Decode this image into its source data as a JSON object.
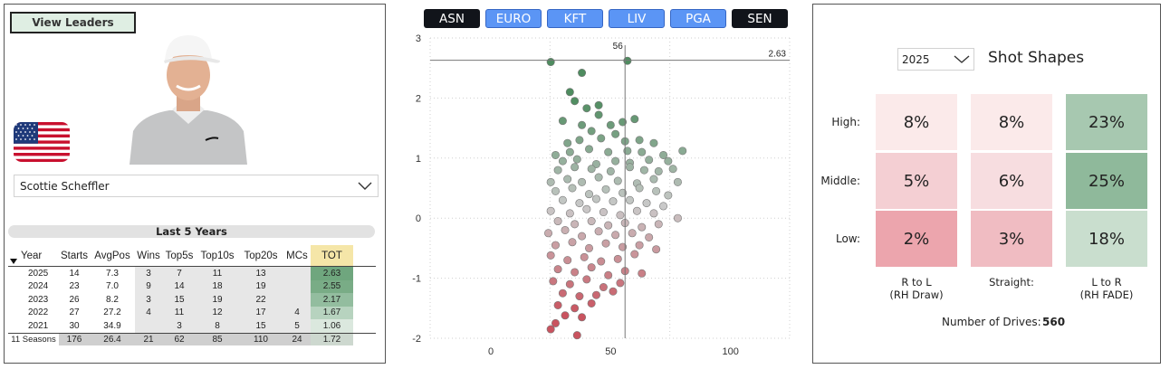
{
  "left": {
    "view_leaders_label": "View Leaders",
    "player": "Scottie Scheffler",
    "last5_label": "Last 5 Years",
    "table": {
      "headers": [
        "Year",
        "Starts",
        "AvgPos",
        "Wins",
        "Top5s",
        "Top10s",
        "Top20s",
        "MCs",
        "TOT"
      ],
      "rows": [
        {
          "year": "2025",
          "starts": "14",
          "avgpos": "7.3",
          "wins": "3",
          "top5s": "7",
          "top10s": "11",
          "top20s": "13",
          "mcs": "",
          "tot": "2.63",
          "tot_color": "#6fa67e"
        },
        {
          "year": "2024",
          "starts": "23",
          "avgpos": "7.0",
          "wins": "9",
          "top5s": "14",
          "top10s": "18",
          "top20s": "19",
          "mcs": "",
          "tot": "2.55",
          "tot_color": "#79ac86"
        },
        {
          "year": "2023",
          "starts": "26",
          "avgpos": "8.2",
          "wins": "3",
          "top5s": "15",
          "top10s": "19",
          "top20s": "22",
          "mcs": "",
          "tot": "2.17",
          "tot_color": "#93bd9f"
        },
        {
          "year": "2022",
          "starts": "27",
          "avgpos": "27.2",
          "wins": "4",
          "top5s": "11",
          "top10s": "12",
          "top20s": "17",
          "mcs": "4",
          "tot": "1.67",
          "tot_color": "#b7d3bf"
        },
        {
          "year": "2021",
          "starts": "30",
          "avgpos": "34.9",
          "wins": "",
          "top5s": "3",
          "top10s": "8",
          "top20s": "15",
          "mcs": "5",
          "tot": "1.06",
          "tot_color": "#dbe8de"
        }
      ],
      "total": {
        "label": "11 Seasons",
        "starts": "176",
        "avgpos": "26.4",
        "wins": "21",
        "top5s": "62",
        "top10s": "85",
        "top20s": "110",
        "mcs": "24",
        "tot": "1.72"
      }
    }
  },
  "tours": [
    {
      "label": "ASN",
      "style": "dark"
    },
    {
      "label": "EURO",
      "style": "blue"
    },
    {
      "label": "KFT",
      "style": "blue"
    },
    {
      "label": "LIV",
      "style": "blue"
    },
    {
      "label": "PGA",
      "style": "blue"
    },
    {
      "label": "SEN",
      "style": "dark"
    }
  ],
  "chart_data": {
    "type": "scatter",
    "xlim": [
      0,
      150
    ],
    "ylim": [
      -2,
      3
    ],
    "xticks": [
      "0",
      "50",
      "100",
      "150"
    ],
    "yticks": [
      "-2",
      "-1",
      "0",
      "1",
      "2",
      "3"
    ],
    "reference_x": 56,
    "reference_x_label": "56",
    "reference_y": 2.63,
    "reference_y_label": "2.63",
    "grid": true,
    "color_high": "#4e8c5f",
    "color_mid": "#c9c9c9",
    "color_low": "#c9535f",
    "points": [
      [
        25,
        2.6
      ],
      [
        57,
        2.62
      ],
      [
        38,
        2.42
      ],
      [
        33,
        2.1
      ],
      [
        35,
        1.95
      ],
      [
        45,
        1.88
      ],
      [
        40,
        1.83
      ],
      [
        30,
        1.62
      ],
      [
        45,
        1.72
      ],
      [
        38,
        1.55
      ],
      [
        50,
        1.55
      ],
      [
        55,
        1.6
      ],
      [
        60,
        1.65
      ],
      [
        42,
        1.45
      ],
      [
        52,
        1.4
      ],
      [
        32,
        1.25
      ],
      [
        37,
        1.3
      ],
      [
        46,
        1.33
      ],
      [
        56,
        1.28
      ],
      [
        62,
        1.3
      ],
      [
        68,
        1.25
      ],
      [
        27,
        1.05
      ],
      [
        33,
        1.1
      ],
      [
        41,
        1.15
      ],
      [
        49,
        1.1
      ],
      [
        57,
        1.12
      ],
      [
        63,
        1.1
      ],
      [
        72,
        1.05
      ],
      [
        80,
        1.12
      ],
      [
        30,
        0.95
      ],
      [
        36,
        0.98
      ],
      [
        44,
        0.9
      ],
      [
        52,
        0.95
      ],
      [
        58,
        0.92
      ],
      [
        66,
        0.97
      ],
      [
        74,
        0.95
      ],
      [
        28,
        0.8
      ],
      [
        35,
        0.85
      ],
      [
        42,
        0.82
      ],
      [
        50,
        0.78
      ],
      [
        58,
        0.85
      ],
      [
        64,
        0.8
      ],
      [
        70,
        0.78
      ],
      [
        76,
        0.82
      ],
      [
        25,
        0.6
      ],
      [
        32,
        0.65
      ],
      [
        38,
        0.6
      ],
      [
        45,
        0.68
      ],
      [
        53,
        0.62
      ],
      [
        61,
        0.58
      ],
      [
        68,
        0.65
      ],
      [
        78,
        0.6
      ],
      [
        27,
        0.45
      ],
      [
        34,
        0.5
      ],
      [
        41,
        0.4
      ],
      [
        48,
        0.48
      ],
      [
        55,
        0.42
      ],
      [
        62,
        0.5
      ],
      [
        69,
        0.45
      ],
      [
        74,
        0.38
      ],
      [
        30,
        0.3
      ],
      [
        37,
        0.25
      ],
      [
        44,
        0.32
      ],
      [
        51,
        0.28
      ],
      [
        58,
        0.3
      ],
      [
        65,
        0.25
      ],
      [
        72,
        0.2
      ],
      [
        25,
        0.12
      ],
      [
        33,
        0.08
      ],
      [
        40,
        0.15
      ],
      [
        47,
        0.1
      ],
      [
        54,
        0.05
      ],
      [
        61,
        0.12
      ],
      [
        68,
        0.08
      ],
      [
        78,
        0.0
      ],
      [
        28,
        -0.05
      ],
      [
        35,
        -0.1
      ],
      [
        42,
        -0.05
      ],
      [
        49,
        -0.12
      ],
      [
        56,
        -0.08
      ],
      [
        63,
        -0.15
      ],
      [
        70,
        -0.1
      ],
      [
        24,
        -0.25
      ],
      [
        31,
        -0.2
      ],
      [
        38,
        -0.3
      ],
      [
        45,
        -0.22
      ],
      [
        52,
        -0.28
      ],
      [
        59,
        -0.25
      ],
      [
        66,
        -0.32
      ],
      [
        27,
        -0.45
      ],
      [
        34,
        -0.4
      ],
      [
        41,
        -0.5
      ],
      [
        48,
        -0.42
      ],
      [
        55,
        -0.48
      ],
      [
        62,
        -0.45
      ],
      [
        69,
        -0.52
      ],
      [
        25,
        -0.62
      ],
      [
        32,
        -0.7
      ],
      [
        39,
        -0.65
      ],
      [
        46,
        -0.72
      ],
      [
        53,
        -0.68
      ],
      [
        60,
        -0.6
      ],
      [
        28,
        -0.85
      ],
      [
        35,
        -0.9
      ],
      [
        42,
        -0.82
      ],
      [
        49,
        -0.95
      ],
      [
        56,
        -0.88
      ],
      [
        63,
        -0.92
      ],
      [
        26,
        -1.05
      ],
      [
        33,
        -1.1
      ],
      [
        40,
        -1.02
      ],
      [
        47,
        -1.15
      ],
      [
        54,
        -1.08
      ],
      [
        30,
        -1.25
      ],
      [
        37,
        -1.3
      ],
      [
        44,
        -1.28
      ],
      [
        51,
        -1.22
      ],
      [
        28,
        -1.45
      ],
      [
        35,
        -1.5
      ],
      [
        42,
        -1.42
      ],
      [
        31,
        -1.62
      ],
      [
        38,
        -1.65
      ],
      [
        27,
        -1.75
      ],
      [
        25,
        -1.85
      ],
      [
        36,
        -1.95
      ]
    ]
  },
  "right": {
    "year": "2025",
    "title": "Shot Shapes",
    "row_labels": [
      "High:",
      "Middle:",
      "Low:"
    ],
    "col_labels": [
      [
        "R to L",
        "(RH Draw)"
      ],
      [
        "Straight:",
        ""
      ],
      [
        "L to R",
        "(RH FADE)"
      ]
    ],
    "cells": [
      [
        {
          "v": "8%",
          "c": "#fbeaea"
        },
        {
          "v": "8%",
          "c": "#fbeaea"
        },
        {
          "v": "23%",
          "c": "#a7c8b0"
        }
      ],
      [
        {
          "v": "5%",
          "c": "#f4cfd3"
        },
        {
          "v": "6%",
          "c": "#f7dde0"
        },
        {
          "v": "25%",
          "c": "#8fb99b"
        }
      ],
      [
        {
          "v": "2%",
          "c": "#eca5ad"
        },
        {
          "v": "3%",
          "c": "#f0bcc2"
        },
        {
          "v": "18%",
          "c": "#c9dece"
        }
      ]
    ],
    "drives_label": "Number of Drives:",
    "drives_value": "560"
  }
}
